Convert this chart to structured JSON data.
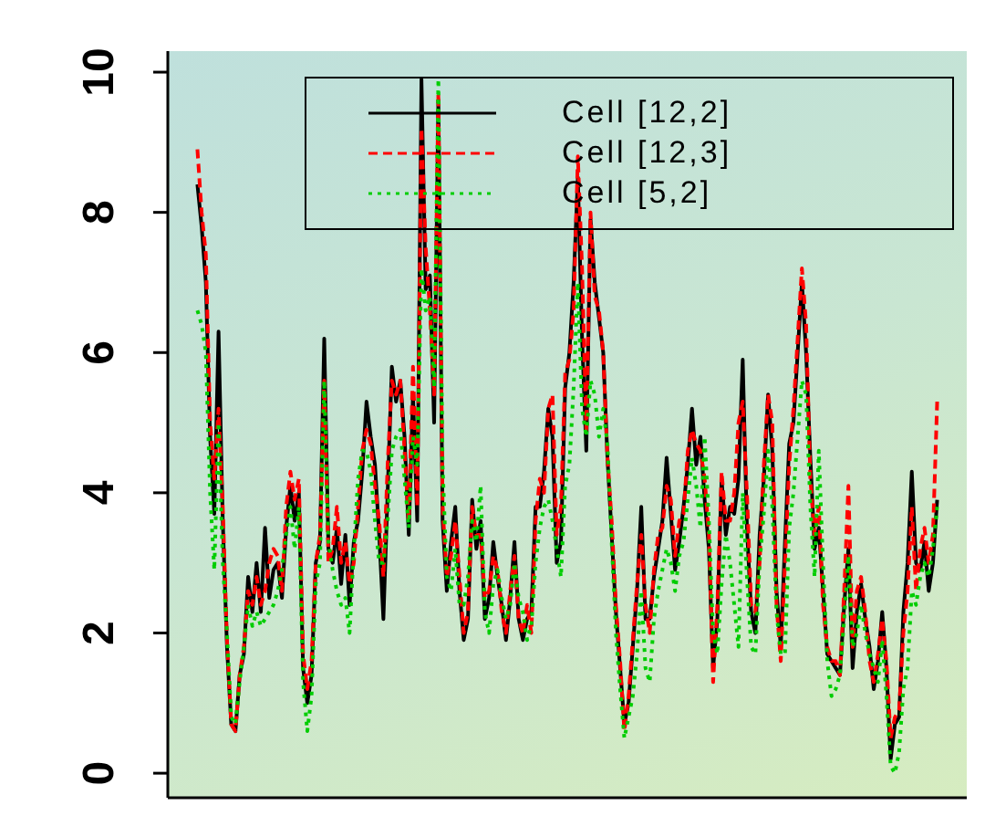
{
  "chart_data": {
    "type": "line",
    "categories": [
      null,
      null,
      null,
      null,
      null,
      null,
      null,
      null,
      null,
      null,
      null,
      null,
      null,
      null,
      null,
      null,
      null,
      null,
      null,
      null,
      null,
      null,
      null,
      null,
      null,
      null,
      null,
      null,
      null,
      null,
      null,
      null,
      null,
      null,
      null,
      null,
      null,
      null,
      null,
      null,
      null,
      null,
      null,
      null,
      null,
      null,
      null,
      null,
      null,
      null,
      null,
      null,
      null,
      null,
      null,
      null,
      null,
      null,
      null,
      null,
      null,
      null,
      null,
      null,
      null,
      null,
      null,
      null,
      null,
      null,
      null,
      null,
      null,
      null,
      null,
      null,
      null,
      null,
      null,
      null,
      null,
      null,
      null,
      null,
      null,
      null,
      null,
      null,
      null,
      null,
      null,
      null,
      null,
      null,
      null,
      null,
      null,
      null,
      null,
      null,
      null,
      null,
      null,
      null,
      null,
      null,
      null,
      null,
      null,
      null,
      null,
      null,
      null,
      null,
      null,
      null,
      null,
      null,
      null,
      null,
      null,
      null,
      null,
      null,
      null,
      null,
      null,
      null,
      null,
      null,
      null,
      null,
      null,
      null,
      null,
      null,
      null,
      null,
      null,
      null,
      null,
      null,
      null,
      null,
      null,
      null,
      null,
      null,
      null,
      null,
      null,
      null,
      null,
      null,
      null,
      null,
      null,
      null,
      null,
      null,
      null,
      null,
      null,
      null,
      null,
      null,
      null,
      null,
      null,
      null,
      null,
      null,
      null,
      null,
      null,
      null
    ],
    "series": [
      {
        "name": "Cell [12,2]",
        "color": "#000000",
        "line_style": "solid",
        "values": [
          8.4,
          7.8,
          7.0,
          4.8,
          3.7,
          6.3,
          3.6,
          1.8,
          0.7,
          0.6,
          1.4,
          1.7,
          2.8,
          2.3,
          3.0,
          2.3,
          3.5,
          2.5,
          2.9,
          3.0,
          2.5,
          3.5,
          4.1,
          3.6,
          4.0,
          1.5,
          1.0,
          1.4,
          3.0,
          3.3,
          6.2,
          3.2,
          3.0,
          3.5,
          2.7,
          3.4,
          2.4,
          3.3,
          3.6,
          4.3,
          5.3,
          4.8,
          4.4,
          3.4,
          2.2,
          4.0,
          5.8,
          5.3,
          5.6,
          4.8,
          3.4,
          5.4,
          3.6,
          9.9,
          6.9,
          7.1,
          5.0,
          9.6,
          3.6,
          2.6,
          3.3,
          3.8,
          2.6,
          1.9,
          2.2,
          3.9,
          3.2,
          3.6,
          2.2,
          2.5,
          3.3,
          2.8,
          2.4,
          1.9,
          2.5,
          3.3,
          2.2,
          1.9,
          2.2,
          2.3,
          3.8,
          3.8,
          4.3,
          5.2,
          4.8,
          3.0,
          3.3,
          5.5,
          6.0,
          7.0,
          8.5,
          6.2,
          4.6,
          7.9,
          7.0,
          6.5,
          6.0,
          4.5,
          3.4,
          2.3,
          1.5,
          0.7,
          1.0,
          1.8,
          2.6,
          3.8,
          2.2,
          2.2,
          2.8,
          3.2,
          3.6,
          4.5,
          3.7,
          2.9,
          3.3,
          3.8,
          4.4,
          5.2,
          4.4,
          4.8,
          3.9,
          3.2,
          1.5,
          2.2,
          4.2,
          3.4,
          3.8,
          3.7,
          4.2,
          5.9,
          3.5,
          2.3,
          2.0,
          3.4,
          4.2,
          5.4,
          4.6,
          2.6,
          1.8,
          3.3,
          4.7,
          5.0,
          6.0,
          7.0,
          6.0,
          4.5,
          3.2,
          3.5,
          2.6,
          1.7,
          1.6,
          1.5,
          1.4,
          2.4,
          3.2,
          1.5,
          2.3,
          2.7,
          2.2,
          1.8,
          1.2,
          1.6,
          2.3,
          1.5,
          0.2,
          0.7,
          0.8,
          2.3,
          3.0,
          4.3,
          3.0,
          2.9,
          3.3,
          2.6,
          3.0,
          3.9
        ]
      },
      {
        "name": "Cell [12,3]",
        "color": "#ff0000",
        "line_style": "dashed",
        "values": [
          8.9,
          8.0,
          7.4,
          5.0,
          4.2,
          5.2,
          3.8,
          1.9,
          0.7,
          0.6,
          1.4,
          1.8,
          2.6,
          2.4,
          2.8,
          2.4,
          2.6,
          3.0,
          3.2,
          3.1,
          2.6,
          3.8,
          4.3,
          3.9,
          4.2,
          1.7,
          1.2,
          1.6,
          3.0,
          3.4,
          5.6,
          3.0,
          3.2,
          3.8,
          3.0,
          3.3,
          2.7,
          3.0,
          3.8,
          4.6,
          4.9,
          4.7,
          4.1,
          3.6,
          2.8,
          4.4,
          5.6,
          5.4,
          5.6,
          4.6,
          3.6,
          5.8,
          3.8,
          9.2,
          7.5,
          6.6,
          5.4,
          9.7,
          3.8,
          2.8,
          3.1,
          3.6,
          2.8,
          2.0,
          2.3,
          3.8,
          3.4,
          3.4,
          2.5,
          2.6,
          3.1,
          2.9,
          2.3,
          2.0,
          2.6,
          3.1,
          2.2,
          2.0,
          2.4,
          2.0,
          3.6,
          4.2,
          4.0,
          5.2,
          5.4,
          3.4,
          3.8,
          5.7,
          5.9,
          6.6,
          8.8,
          7.2,
          4.9,
          8.0,
          6.8,
          6.6,
          6.0,
          4.5,
          3.6,
          2.4,
          1.6,
          0.6,
          1.1,
          1.9,
          2.7,
          3.4,
          2.4,
          2.0,
          2.9,
          3.4,
          3.5,
          4.1,
          3.9,
          3.1,
          3.6,
          3.7,
          4.6,
          4.9,
          4.7,
          4.6,
          4.2,
          3.4,
          1.3,
          2.4,
          4.3,
          3.6,
          3.6,
          4.0,
          5.0,
          5.3,
          4.0,
          2.4,
          2.3,
          3.0,
          4.4,
          5.4,
          5.0,
          2.4,
          1.6,
          3.0,
          4.4,
          5.2,
          6.2,
          7.2,
          6.4,
          4.2,
          3.4,
          3.8,
          2.4,
          1.8,
          1.6,
          1.6,
          1.4,
          2.6,
          4.1,
          1.8,
          2.6,
          2.8,
          2.3,
          1.6,
          1.3,
          1.7,
          2.2,
          1.6,
          0.5,
          0.8,
          0.9,
          2.0,
          2.6,
          3.8,
          2.6,
          3.2,
          3.5,
          3.0,
          3.4,
          5.3
        ]
      },
      {
        "name": "Cell [5,2]",
        "color": "#00cd00",
        "line_style": "dotted",
        "values": [
          6.6,
          6.4,
          6.0,
          4.0,
          2.9,
          5.0,
          3.0,
          2.0,
          0.8,
          0.7,
          1.3,
          1.8,
          2.4,
          2.1,
          2.3,
          2.1,
          2.2,
          2.3,
          2.4,
          2.6,
          2.9,
          3.4,
          3.8,
          3.2,
          3.8,
          1.3,
          0.6,
          1.1,
          2.7,
          3.0,
          5.6,
          3.3,
          2.9,
          2.6,
          2.4,
          2.5,
          2.0,
          3.2,
          4.2,
          4.6,
          4.6,
          4.3,
          3.6,
          3.0,
          3.0,
          3.6,
          4.6,
          4.8,
          4.9,
          4.2,
          3.5,
          4.8,
          4.4,
          7.2,
          6.6,
          6.8,
          5.5,
          9.9,
          4.4,
          2.8,
          2.6,
          3.2,
          2.4,
          2.4,
          2.8,
          3.6,
          3.3,
          4.1,
          2.3,
          2.0,
          2.7,
          2.9,
          2.5,
          2.2,
          2.4,
          3.0,
          2.5,
          2.3,
          1.9,
          2.1,
          3.0,
          3.5,
          3.8,
          3.9,
          3.6,
          3.2,
          2.8,
          4.1,
          4.4,
          5.5,
          7.0,
          5.2,
          4.8,
          5.6,
          5.4,
          4.8,
          5.2,
          4.7,
          3.3,
          2.0,
          1.2,
          0.5,
          0.8,
          1.1,
          1.7,
          2.6,
          1.5,
          1.3,
          2.2,
          2.6,
          2.9,
          3.2,
          3.0,
          2.6,
          3.1,
          3.3,
          3.9,
          4.5,
          4.1,
          3.5,
          4.8,
          3.6,
          2.0,
          1.7,
          2.7,
          3.4,
          3.0,
          2.4,
          1.8,
          4.0,
          2.8,
          1.8,
          1.7,
          3.0,
          3.7,
          4.6,
          3.8,
          2.3,
          1.7,
          1.7,
          3.5,
          4.0,
          4.8,
          5.6,
          5.4,
          3.8,
          2.8,
          4.6,
          3.0,
          1.6,
          1.1,
          1.2,
          1.4,
          2.2,
          3.1,
          1.8,
          2.0,
          2.4,
          2.0,
          1.7,
          1.5,
          1.3,
          1.9,
          1.1,
          0.1,
          0.0,
          0.3,
          1.2,
          1.5,
          2.6,
          2.4,
          2.8,
          3.0,
          2.8,
          3.2,
          3.8
        ]
      }
    ],
    "ylim": [
      -0.35,
      10.3
    ],
    "yticks": [
      0,
      2,
      4,
      6,
      8,
      10
    ],
    "tick_labels": "y",
    "grid": false,
    "legend": "top right"
  }
}
